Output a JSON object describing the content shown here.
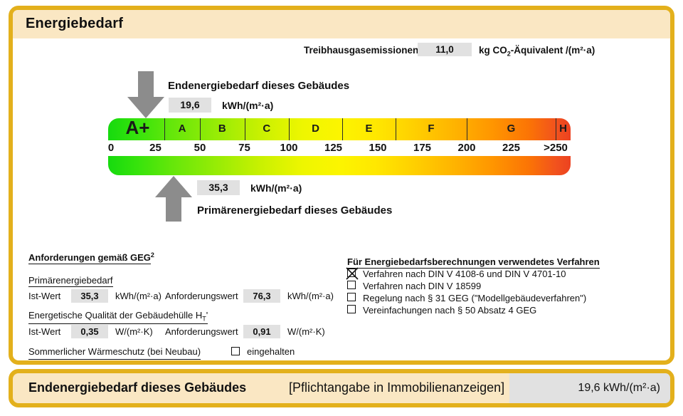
{
  "header": {
    "title": "Energiebedarf"
  },
  "emissions": {
    "label": "Treibhausgasemissionen",
    "value": "11,0",
    "unit_a": "kg CO",
    "unit_sub": "2",
    "unit_b": "-Äquivalent /(m²·a)"
  },
  "end_energy": {
    "label": "Endenergiebedarf dieses Gebäudes",
    "value": "19,6",
    "unit": "kWh/(m²·a)"
  },
  "primary_energy": {
    "label": "Primärenergiebedarf dieses Gebäudes",
    "value": "35,3",
    "unit": "kWh/(m²·a)"
  },
  "scale": {
    "min": 0,
    "max": 250,
    "tick_step": 25,
    "ticks": [
      "0",
      "25",
      "50",
      "75",
      "100",
      "125",
      "150",
      "175",
      "200",
      "225",
      ">250"
    ],
    "classes": [
      {
        "label": "A+",
        "from": 0,
        "to": 30
      },
      {
        "label": "A",
        "from": 30,
        "to": 50
      },
      {
        "label": "B",
        "from": 50,
        "to": 75
      },
      {
        "label": "C",
        "from": 75,
        "to": 100
      },
      {
        "label": "D",
        "from": 100,
        "to": 130
      },
      {
        "label": "E",
        "from": 130,
        "to": 160
      },
      {
        "label": "F",
        "from": 160,
        "to": 200
      },
      {
        "label": "G",
        "from": 200,
        "to": 250
      },
      {
        "label": "H",
        "from": 250,
        "to": 260
      }
    ],
    "colors": {
      "gradient_start_green": "#16da0e",
      "gradient_mid_yellow": "#fcf500",
      "gradient_end_red": "#ec4220",
      "arrow_gray": "#8C8C8C",
      "border_gold": "#E3B01C",
      "header_cream": "#FAE7C3",
      "value_box_gray": "#E1E1E1"
    }
  },
  "requirements": {
    "heading": "Anforderungen gemäß GEG",
    "heading_sup": "2",
    "primary": {
      "heading": "Primärenergiebedarf",
      "ist_label": "Ist-Wert",
      "ist_value": "35,3",
      "ist_unit": "kWh/(m²·a)",
      "req_label": "Anforderungswert",
      "req_value": "76,3",
      "req_unit": "kWh/(m²·a)"
    },
    "envelope": {
      "heading_a": "Energetische Qualität der Gebäudehülle H",
      "heading_sub": "T",
      "heading_b": "'",
      "ist_label": "Ist-Wert",
      "ist_value": "0,35",
      "ist_unit": "W/(m²·K)",
      "req_label": "Anforderungswert",
      "req_value": "0,91",
      "req_unit": "W/(m²·K)"
    },
    "summer": {
      "heading": "Sommerlicher Wärmeschutz (bei Neubau)",
      "checkbox_label": "eingehalten",
      "checked": false
    }
  },
  "procedures": {
    "heading": "Für Energiebedarfsberechnungen verwendetes Verfahren",
    "items": [
      {
        "label": "Verfahren nach DIN V 4108-6 und DIN V 4701-10",
        "checked": true
      },
      {
        "label": "Verfahren nach DIN V 18599",
        "checked": false
      },
      {
        "label": "Regelung nach § 31 GEG (\"Modellgebäudeverfahren\")",
        "checked": false
      },
      {
        "label": "Vereinfachungen nach § 50 Absatz 4 GEG",
        "checked": false
      }
    ]
  },
  "footer": {
    "title": "Endenergiebedarf dieses Gebäudes",
    "note": "[Pflichtangabe in Immobilienanzeigen]",
    "value": "19,6 kWh/(m²·a)"
  }
}
